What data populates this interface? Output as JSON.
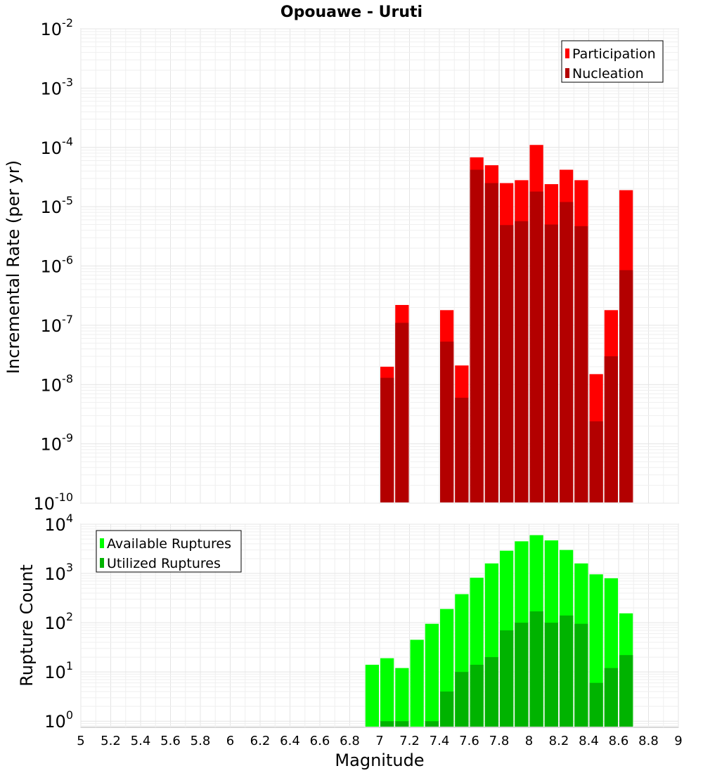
{
  "chart_data": [
    {
      "type": "bar",
      "title": "Opouawe - Uruti",
      "xlabel": "",
      "ylabel": "Incremental Rate (per yr)",
      "yscale": "log",
      "ylim": [
        1e-10,
        0.01
      ],
      "xlim": [
        5,
        9
      ],
      "ytick_exponents": [
        "-10",
        "-9",
        "-8",
        "-7",
        "-6",
        "-5",
        "-4",
        "-3",
        "-2"
      ],
      "legend_position": "top-right",
      "grid": true,
      "series": [
        {
          "name": "Participation",
          "color": "#ff0000",
          "points": [
            {
              "x": 7.05,
              "y": 2e-08
            },
            {
              "x": 7.15,
              "y": 2.2e-07
            },
            {
              "x": 7.45,
              "y": 1.8e-07
            },
            {
              "x": 7.55,
              "y": 2.1e-08
            },
            {
              "x": 7.65,
              "y": 6.8e-05
            },
            {
              "x": 7.75,
              "y": 5e-05
            },
            {
              "x": 7.85,
              "y": 2.5e-05
            },
            {
              "x": 7.95,
              "y": 2.8e-05
            },
            {
              "x": 8.05,
              "y": 0.00011
            },
            {
              "x": 8.15,
              "y": 2.4e-05
            },
            {
              "x": 8.25,
              "y": 4.2e-05
            },
            {
              "x": 8.35,
              "y": 2.8e-05
            },
            {
              "x": 8.45,
              "y": 1.5e-08
            },
            {
              "x": 8.55,
              "y": 1.8e-07
            },
            {
              "x": 8.65,
              "y": 1.9e-05
            }
          ]
        },
        {
          "name": "Nucleation",
          "color": "#b30000",
          "points": [
            {
              "x": 7.05,
              "y": 1.3e-08
            },
            {
              "x": 7.15,
              "y": 1.1e-07
            },
            {
              "x": 7.45,
              "y": 5.3e-08
            },
            {
              "x": 7.55,
              "y": 6e-09
            },
            {
              "x": 7.65,
              "y": 4.2e-05
            },
            {
              "x": 7.75,
              "y": 2.5e-05
            },
            {
              "x": 7.85,
              "y": 4.9e-06
            },
            {
              "x": 7.95,
              "y": 5.7e-06
            },
            {
              "x": 8.05,
              "y": 1.8e-05
            },
            {
              "x": 8.15,
              "y": 5e-06
            },
            {
              "x": 8.25,
              "y": 1.2e-05
            },
            {
              "x": 8.35,
              "y": 4.7e-06
            },
            {
              "x": 8.45,
              "y": 2.4e-09
            },
            {
              "x": 8.55,
              "y": 3e-08
            },
            {
              "x": 8.65,
              "y": 8.5e-07
            }
          ]
        }
      ]
    },
    {
      "type": "bar",
      "title": "",
      "xlabel": "Magnitude",
      "ylabel": "Rupture Count",
      "yscale": "log",
      "ylim": [
        0.75,
        10000
      ],
      "xlim": [
        5,
        9
      ],
      "ytick_exponents": [
        "0",
        "1",
        "2",
        "3",
        "4"
      ],
      "xticks": [
        "5",
        "5.2",
        "5.4",
        "5.6",
        "5.8",
        "6",
        "6.2",
        "6.4",
        "6.6",
        "6.8",
        "7",
        "7.2",
        "7.4",
        "7.6",
        "7.8",
        "8",
        "8.2",
        "8.4",
        "8.6",
        "8.8",
        "9"
      ],
      "legend_position": "top-left",
      "grid": true,
      "series": [
        {
          "name": "Available Ruptures",
          "color": "#00ff00",
          "points": [
            {
              "x": 6.95,
              "y": 14
            },
            {
              "x": 7.05,
              "y": 19
            },
            {
              "x": 7.15,
              "y": 12
            },
            {
              "x": 7.25,
              "y": 45
            },
            {
              "x": 7.35,
              "y": 95
            },
            {
              "x": 7.45,
              "y": 190
            },
            {
              "x": 7.55,
              "y": 380
            },
            {
              "x": 7.65,
              "y": 820
            },
            {
              "x": 7.75,
              "y": 1600
            },
            {
              "x": 7.85,
              "y": 2900
            },
            {
              "x": 7.95,
              "y": 4500
            },
            {
              "x": 8.05,
              "y": 6000
            },
            {
              "x": 8.15,
              "y": 4700
            },
            {
              "x": 8.25,
              "y": 3000
            },
            {
              "x": 8.35,
              "y": 1600
            },
            {
              "x": 8.45,
              "y": 960
            },
            {
              "x": 8.55,
              "y": 800
            },
            {
              "x": 8.65,
              "y": 155
            }
          ]
        },
        {
          "name": "Utilized Ruptures",
          "color": "#00b300",
          "points": [
            {
              "x": 7.05,
              "y": 1
            },
            {
              "x": 7.15,
              "y": 1
            },
            {
              "x": 7.35,
              "y": 1
            },
            {
              "x": 7.45,
              "y": 4
            },
            {
              "x": 7.55,
              "y": 10
            },
            {
              "x": 7.65,
              "y": 14
            },
            {
              "x": 7.75,
              "y": 20
            },
            {
              "x": 7.85,
              "y": 70
            },
            {
              "x": 7.95,
              "y": 100
            },
            {
              "x": 8.05,
              "y": 170
            },
            {
              "x": 8.15,
              "y": 100
            },
            {
              "x": 8.25,
              "y": 140
            },
            {
              "x": 8.35,
              "y": 95
            },
            {
              "x": 8.45,
              "y": 6
            },
            {
              "x": 8.55,
              "y": 12
            },
            {
              "x": 8.65,
              "y": 22
            }
          ]
        }
      ]
    }
  ]
}
